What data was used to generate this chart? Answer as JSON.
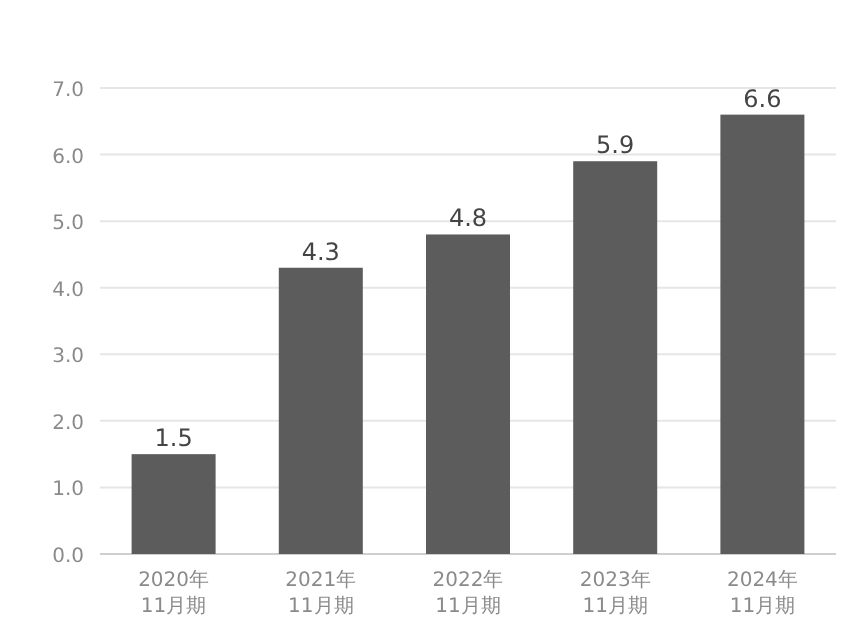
{
  "chart_data": {
    "type": "bar",
    "categories": [
      "2020年\n11月期",
      "2021年\n11月期",
      "2022年\n11月期",
      "2023年\n11月期",
      "2024年\n11月期"
    ],
    "values": [
      1.5,
      4.3,
      4.8,
      5.9,
      6.6
    ],
    "color": "#5c5c5c",
    "ylim": [
      0,
      7
    ],
    "yticks": [
      {
        "value": 0,
        "label": "0.0"
      },
      {
        "value": 1,
        "label": "1.0"
      },
      {
        "value": 2,
        "label": "2.0"
      },
      {
        "value": 3,
        "label": "3.0"
      },
      {
        "value": 4,
        "label": "4.0"
      },
      {
        "value": 5,
        "label": "5.0"
      },
      {
        "value": 6,
        "label": "6.0"
      },
      {
        "value": 7,
        "label": "7.0"
      }
    ],
    "grid": "y",
    "data_labels": true
  }
}
